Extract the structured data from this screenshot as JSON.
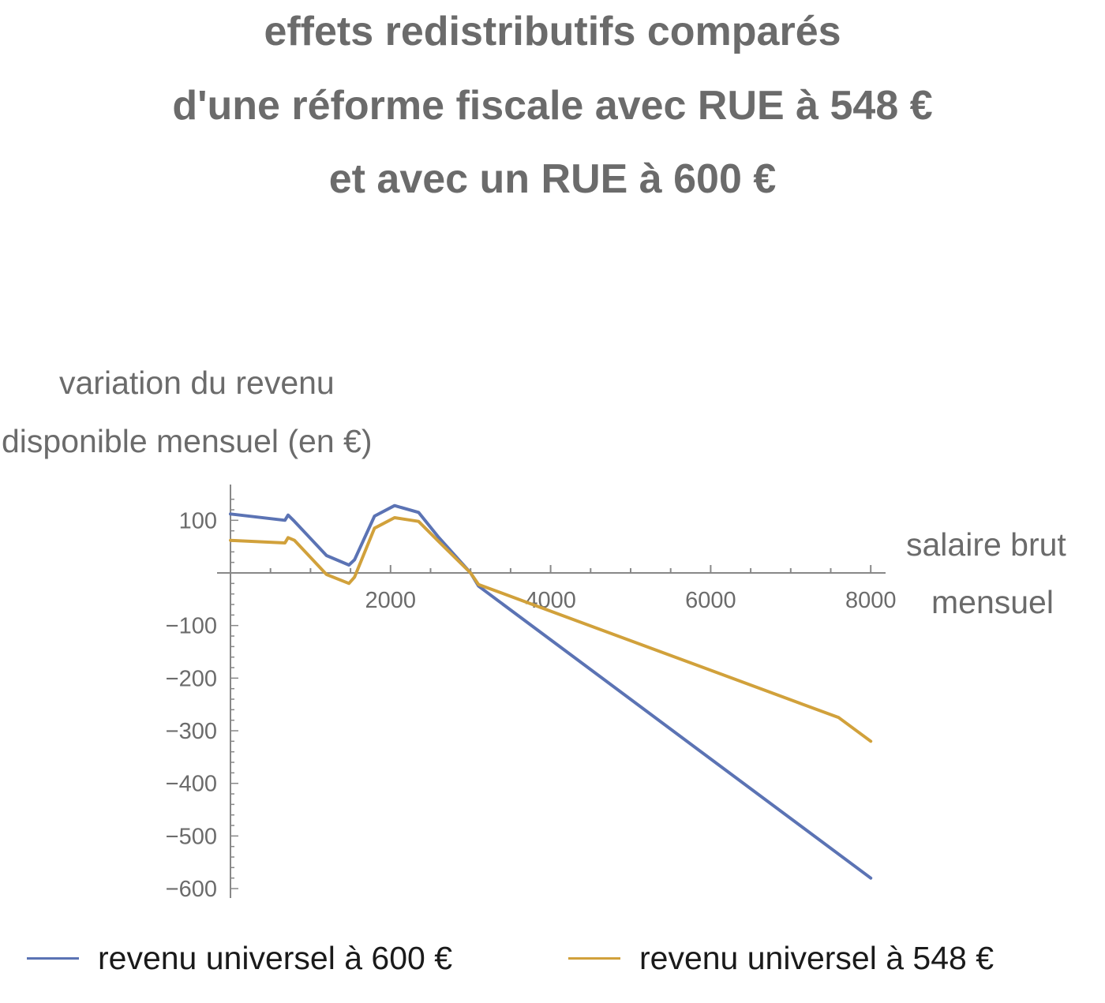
{
  "chart_data": {
    "type": "line",
    "title_lines": [
      "effets redistributifs comparés",
      "d'une réforme fiscale avec RUE à 548 €",
      "et avec un RUE à 600 €"
    ],
    "ylabel_lines": [
      "variation du revenu",
      "disponible mensuel (en €)"
    ],
    "xlabel_lines": [
      "salaire brut",
      "mensuel"
    ],
    "xlim": [
      0,
      8000
    ],
    "ylim": [
      -620,
      160
    ],
    "x_ticks": [
      2000,
      4000,
      6000,
      8000
    ],
    "x_tick_labels": [
      "2000",
      "4000",
      "6000",
      "8000"
    ],
    "y_ticks": [
      100,
      -100,
      -200,
      -300,
      -400,
      -500,
      -600
    ],
    "y_tick_labels": [
      "100",
      "−100",
      "−200",
      "−300",
      "−400",
      "−500",
      "−600"
    ],
    "grid": false,
    "legend_position": "bottom",
    "series": [
      {
        "name": "revenu universel à 600 €",
        "color": "#5b73b4",
        "points": [
          [
            0,
            112
          ],
          [
            680,
            100
          ],
          [
            720,
            110
          ],
          [
            800,
            98
          ],
          [
            1200,
            33
          ],
          [
            1480,
            15
          ],
          [
            1550,
            25
          ],
          [
            1800,
            108
          ],
          [
            2050,
            128
          ],
          [
            2350,
            115
          ],
          [
            2600,
            68
          ],
          [
            3000,
            0
          ],
          [
            3100,
            -25
          ],
          [
            8000,
            -580
          ]
        ]
      },
      {
        "name": "revenu universel à 548 €",
        "color": "#d1a13b",
        "points": [
          [
            0,
            62
          ],
          [
            680,
            57
          ],
          [
            720,
            67
          ],
          [
            800,
            62
          ],
          [
            1200,
            -3
          ],
          [
            1480,
            -20
          ],
          [
            1550,
            -8
          ],
          [
            1800,
            85
          ],
          [
            2050,
            105
          ],
          [
            2350,
            98
          ],
          [
            2600,
            60
          ],
          [
            3000,
            0
          ],
          [
            3100,
            -22
          ],
          [
            7600,
            -275
          ],
          [
            8000,
            -320
          ]
        ]
      }
    ]
  }
}
